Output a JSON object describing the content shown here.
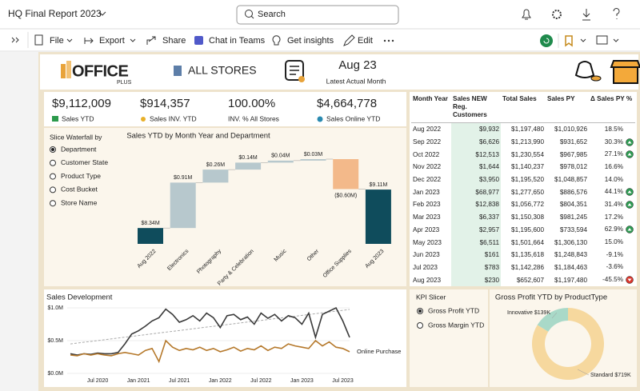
{
  "header": {
    "title": "HQ Final Report 2023",
    "search": "Search"
  },
  "toolbar": {
    "items": [
      "File",
      "Export",
      "Share",
      "Chat in Teams",
      "Get insights",
      "Edit"
    ]
  },
  "banner": {
    "brand": "OFFICE",
    "brand_sub": "PLUS",
    "store": "ALL STORES",
    "month": "Aug 23",
    "month_caption": "Latest Actual Month"
  },
  "kpis": [
    {
      "value": "$9,112,009",
      "label": "Sales YTD"
    },
    {
      "value": "$914,357",
      "label": "Sales INV. YTD"
    },
    {
      "value": "100.00%",
      "label": "INV. % All Stores"
    },
    {
      "value": "$4,664,778",
      "label": "Sales Online YTD"
    }
  ],
  "slicer": {
    "title": "Slice Waterfall by",
    "options": [
      "Department",
      "Customer State",
      "Product Type",
      "Cost Bucket",
      "Store Name"
    ],
    "selected": 0
  },
  "waterfall": {
    "type": "waterfall",
    "title": "Sales YTD by Month Year and Department",
    "categories": [
      "Aug 2022",
      "Electronics",
      "Photography",
      "Party & Celebration",
      "Music",
      "Other",
      "Office Supplies",
      "Aug 2023"
    ],
    "values": [
      8.34,
      0.91,
      0.26,
      0.14,
      0.04,
      0.03,
      -0.6,
      9.11
    ],
    "value_labels": [
      "$8.34M",
      "$0.91M",
      "$0.26M",
      "$0.14M",
      "$0.04M",
      "$0.03M",
      "($0.60M)",
      "$9.11M"
    ],
    "totals": [
      0,
      7
    ],
    "colors": {
      "total": "#0f4c5c",
      "increase": "#b7c8cd",
      "decrease": "#f3b98a"
    }
  },
  "table": {
    "columns": [
      "Month Year",
      "Sales NEW Reg. Customers",
      "Total Sales",
      "Sales PY",
      "Δ Sales PY %"
    ],
    "rows": [
      [
        "Aug 2022",
        "$9,932",
        "$1,197,480",
        "$1,010,926",
        "18.5%"
      ],
      [
        "Sep 2022",
        "$6,626",
        "$1,213,990",
        "$931,652",
        "30.3%"
      ],
      [
        "Oct 2022",
        "$12,513",
        "$1,230,554",
        "$967,985",
        "27.1%"
      ],
      [
        "Nov 2022",
        "$1,644",
        "$1,140,237",
        "$978,012",
        "16.6%"
      ],
      [
        "Dec 2022",
        "$3,950",
        "$1,195,520",
        "$1,048,857",
        "14.0%"
      ],
      [
        "Jan 2023",
        "$68,977",
        "$1,277,650",
        "$886,576",
        "44.1%"
      ],
      [
        "Feb 2023",
        "$12,838",
        "$1,056,772",
        "$804,351",
        "31.4%"
      ],
      [
        "Mar 2023",
        "$6,337",
        "$1,150,308",
        "$981,245",
        "17.2%"
      ],
      [
        "Apr 2023",
        "$2,957",
        "$1,195,600",
        "$733,594",
        "62.9%"
      ],
      [
        "May 2023",
        "$6,511",
        "$1,501,664",
        "$1,306,130",
        "15.0%"
      ],
      [
        "Jun 2023",
        "$161",
        "$1,135,618",
        "$1,248,843",
        "-9.1%"
      ],
      [
        "Jul 2023",
        "$783",
        "$1,142,286",
        "$1,184,463",
        "-3.6%"
      ],
      [
        "Aug 2023",
        "$230",
        "$652,607",
        "$1,197,480",
        "-45.5%"
      ]
    ]
  },
  "sales_development": {
    "type": "line",
    "title": "Sales Development",
    "categories": [
      null,
      null,
      null,
      null,
      "Jul 2020",
      null,
      null,
      null,
      null,
      null,
      "Jan 2021",
      null,
      null,
      null,
      null,
      null,
      "Jul 2021",
      null,
      null,
      null,
      null,
      null,
      "Jan 2022",
      null,
      null,
      null,
      null,
      null,
      "Jul 2022",
      null,
      null,
      null,
      null,
      null,
      "Jan 2023",
      null,
      null,
      null,
      null,
      null,
      "Jul 2023",
      null
    ],
    "series": [
      {
        "color": "#3a3a3a",
        "values": [
          0.3,
          0.28,
          0.3,
          0.29,
          0.31,
          0.3,
          0.3,
          0.32,
          0.45,
          0.6,
          0.65,
          0.72,
          0.8,
          0.85,
          0.98,
          0.9,
          0.78,
          0.82,
          0.88,
          0.8,
          0.92,
          0.85,
          0.7,
          0.88,
          0.9,
          0.82,
          0.86,
          0.75,
          0.92,
          0.84,
          0.9,
          0.8,
          0.88,
          0.85,
          0.75,
          0.92,
          0.55,
          0.9,
          0.95,
          1.0,
          0.8,
          0.55
        ]
      },
      {
        "name": "Online Purchase",
        "color": "#b5782a",
        "values": [
          0.28,
          0.27,
          0.3,
          0.28,
          0.3,
          0.28,
          0.27,
          0.3,
          0.32,
          0.3,
          0.28,
          0.35,
          0.38,
          0.18,
          0.5,
          0.4,
          0.35,
          0.38,
          0.36,
          0.4,
          0.35,
          0.38,
          0.33,
          0.36,
          0.4,
          0.34,
          0.38,
          0.36,
          0.42,
          0.35,
          0.4,
          0.38,
          0.45,
          0.42,
          0.4,
          0.38,
          0.5,
          0.42,
          0.48,
          0.4,
          0.38,
          0.33
        ]
      }
    ],
    "ylim": [
      0,
      1.0
    ],
    "yticks": [
      {
        "value": 0,
        "label": "$0.0M"
      },
      {
        "value": 0.5,
        "label": "$0.5M"
      },
      {
        "value": 1.0,
        "label": "$1.0M"
      }
    ],
    "trend_line": true
  },
  "kpi_slicer": {
    "title": "KPI Slicer",
    "options": [
      "Gross Profit YTD",
      "Gross Margin YTD"
    ],
    "selected": 0
  },
  "donut": {
    "type": "donut",
    "title": "Gross Profit YTD by ProductType",
    "categories": [
      "Innovative",
      "Standard"
    ],
    "values": [
      139,
      719
    ],
    "value_labels": [
      "$139K",
      "$719K"
    ],
    "colors": [
      "#a9d9c8",
      "#f6d89e"
    ]
  }
}
